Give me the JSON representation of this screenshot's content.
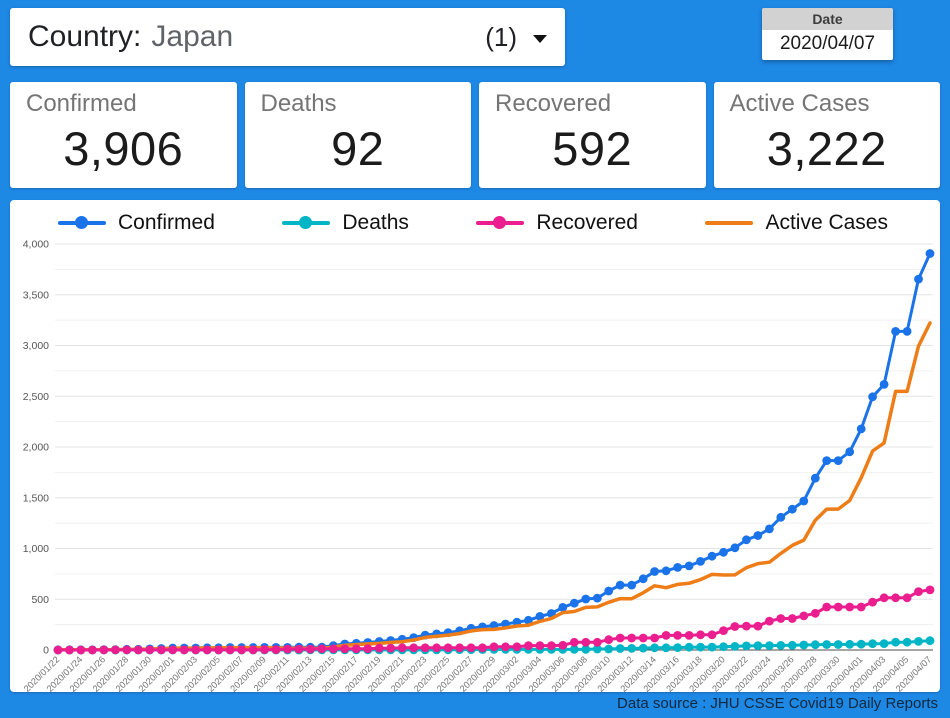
{
  "app": {
    "background_color": "#1e88e5"
  },
  "icons": {
    "country_dropdown": "caret-down"
  },
  "header": {
    "country_label": "Country:",
    "country_value": "Japan",
    "count": "(1)",
    "date_label": "Date",
    "date_value": "2020/04/07"
  },
  "stats": [
    {
      "label": "Confirmed",
      "value": "3,906"
    },
    {
      "label": "Deaths",
      "value": "92"
    },
    {
      "label": "Recovered",
      "value": "592"
    },
    {
      "label": "Active Cases",
      "value": "3,222"
    }
  ],
  "footer": {
    "text": "Data source : JHU CSSE Covid19 Daily Reports"
  },
  "chart_data": {
    "type": "line",
    "title": "",
    "xlabel": "",
    "ylabel": "",
    "ylim": [
      0,
      4000
    ],
    "ytick_interval": 500,
    "minor_ytick_interval": 250,
    "xtick_every": 2,
    "grid": true,
    "legend_position": "top",
    "draw_order": [
      0,
      3,
      1,
      2
    ],
    "x": [
      "2020/01/22",
      "2020/01/23",
      "2020/01/24",
      "2020/01/25",
      "2020/01/26",
      "2020/01/27",
      "2020/01/28",
      "2020/01/29",
      "2020/01/30",
      "2020/01/31",
      "2020/02/01",
      "2020/02/02",
      "2020/02/03",
      "2020/02/04",
      "2020/02/05",
      "2020/02/06",
      "2020/02/07",
      "2020/02/08",
      "2020/02/09",
      "2020/02/10",
      "2020/02/11",
      "2020/02/12",
      "2020/02/13",
      "2020/02/14",
      "2020/02/15",
      "2020/02/16",
      "2020/02/17",
      "2020/02/18",
      "2020/02/19",
      "2020/02/20",
      "2020/02/21",
      "2020/02/22",
      "2020/02/23",
      "2020/02/24",
      "2020/02/25",
      "2020/02/26",
      "2020/02/27",
      "2020/02/28",
      "2020/02/29",
      "2020/03/01",
      "2020/03/02",
      "2020/03/03",
      "2020/03/04",
      "2020/03/05",
      "2020/03/06",
      "2020/03/07",
      "2020/03/08",
      "2020/03/09",
      "2020/03/10",
      "2020/03/11",
      "2020/03/12",
      "2020/03/13",
      "2020/03/14",
      "2020/03/15",
      "2020/03/16",
      "2020/03/17",
      "2020/03/18",
      "2020/03/19",
      "2020/03/20",
      "2020/03/21",
      "2020/03/22",
      "2020/03/23",
      "2020/03/24",
      "2020/03/25",
      "2020/03/26",
      "2020/03/27",
      "2020/03/28",
      "2020/03/29",
      "2020/03/30",
      "2020/03/31",
      "2020/04/01",
      "2020/04/02",
      "2020/04/03",
      "2020/04/04",
      "2020/04/05",
      "2020/04/06",
      "2020/04/07"
    ],
    "series": [
      {
        "name": "Confirmed",
        "color": "#1a73e8",
        "marker": true,
        "line_width": 3,
        "values": [
          2,
          2,
          2,
          2,
          4,
          4,
          7,
          7,
          11,
          15,
          20,
          20,
          20,
          22,
          22,
          25,
          25,
          25,
          26,
          26,
          26,
          28,
          28,
          29,
          43,
          59,
          66,
          74,
          84,
          94,
          105,
          122,
          147,
          159,
          170,
          189,
          214,
          228,
          241,
          256,
          274,
          293,
          331,
          360,
          420,
          461,
          502,
          511,
          581,
          639,
          639,
          701,
          773,
          780,
          814,
          829,
          873,
          924,
          963,
          1007,
          1086,
          1128,
          1193,
          1307,
          1387,
          1468,
          1693,
          1866,
          1866,
          1953,
          2178,
          2495,
          2617,
          3139,
          3139,
          3654,
          3906
        ]
      },
      {
        "name": "Deaths",
        "color": "#00b5c5",
        "marker": true,
        "line_width": 3,
        "values": [
          0,
          0,
          0,
          0,
          0,
          0,
          0,
          0,
          0,
          0,
          0,
          0,
          0,
          0,
          0,
          0,
          0,
          0,
          0,
          0,
          0,
          0,
          1,
          1,
          1,
          1,
          1,
          1,
          1,
          1,
          1,
          1,
          1,
          1,
          1,
          4,
          4,
          5,
          6,
          6,
          6,
          6,
          6,
          6,
          6,
          6,
          6,
          10,
          10,
          15,
          16,
          19,
          22,
          22,
          24,
          28,
          29,
          29,
          33,
          35,
          40,
          42,
          43,
          45,
          46,
          49,
          52,
          54,
          54,
          56,
          57,
          62,
          63,
          77,
          77,
          85,
          92
        ]
      },
      {
        "name": "Recovered",
        "color": "#ea1e8e",
        "marker": true,
        "line_width": 3,
        "values": [
          0,
          0,
          0,
          0,
          1,
          1,
          1,
          1,
          1,
          1,
          1,
          1,
          1,
          1,
          1,
          1,
          1,
          1,
          4,
          4,
          9,
          9,
          9,
          12,
          12,
          12,
          12,
          13,
          18,
          18,
          22,
          22,
          22,
          22,
          22,
          22,
          22,
          22,
          32,
          32,
          32,
          43,
          43,
          43,
          46,
          76,
          76,
          76,
          101,
          118,
          118,
          118,
          118,
          144,
          144,
          144,
          150,
          150,
          191,
          232,
          235,
          235,
          285,
          310,
          310,
          336,
          362,
          424,
          424,
          424,
          424,
          472,
          514,
          514,
          514,
          575,
          592
        ]
      },
      {
        "name": "Active Cases",
        "color": "#ee7d18",
        "marker": false,
        "line_width": 3.5,
        "values": [
          2,
          2,
          2,
          2,
          3,
          3,
          6,
          6,
          10,
          14,
          19,
          19,
          19,
          21,
          21,
          24,
          24,
          24,
          22,
          22,
          17,
          19,
          18,
          16,
          30,
          46,
          53,
          60,
          65,
          75,
          82,
          99,
          124,
          136,
          147,
          163,
          188,
          201,
          203,
          218,
          236,
          244,
          282,
          311,
          368,
          379,
          420,
          425,
          470,
          506,
          505,
          564,
          633,
          614,
          646,
          657,
          694,
          745,
          739,
          740,
          811,
          851,
          865,
          952,
          1031,
          1083,
          1279,
          1388,
          1388,
          1473,
          1697,
          1961,
          2040,
          2548,
          2548,
          2994,
          3222
        ]
      }
    ]
  }
}
